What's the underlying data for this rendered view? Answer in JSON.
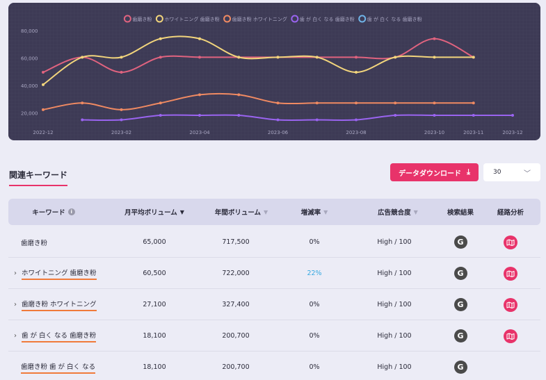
{
  "chart_data": {
    "type": "line",
    "x": [
      "2022-12",
      "2023-01",
      "2023-02",
      "2023-03",
      "2023-04",
      "2023-05",
      "2023-06",
      "2023-07",
      "2023-08",
      "2023-09",
      "2023-10",
      "2023-11",
      "2023-12"
    ],
    "x_ticks": [
      "2022-12",
      "2023-02",
      "2023-04",
      "2023-06",
      "2023-08",
      "2023-10",
      "2023-11",
      "2023-12"
    ],
    "y_ticks": [
      "20,000",
      "40,000",
      "60,000",
      "80,000"
    ],
    "ylim": [
      10000,
      85000
    ],
    "grid": true,
    "legend_position": "top",
    "series": [
      {
        "name": "歯磨き粉",
        "color": "#e0637f",
        "values": [
          49500,
          60500,
          49500,
          60500,
          60500,
          60500,
          60500,
          60500,
          60500,
          60500,
          74000,
          60500,
          null
        ]
      },
      {
        "name": "ホワイトニング 歯磨き粉",
        "color": "#f2d57c",
        "values": [
          40500,
          60500,
          60500,
          74000,
          74000,
          60500,
          60500,
          60500,
          49500,
          60500,
          60500,
          60500,
          null
        ]
      },
      {
        "name": "歯磨き粉 ホワイトニング",
        "color": "#f08a62",
        "values": [
          22200,
          27100,
          22200,
          27100,
          33100,
          33100,
          27100,
          27100,
          27100,
          27100,
          27100,
          27100,
          null
        ]
      },
      {
        "name": "歯 が 白く なる 歯磨き粉",
        "color": "#9a64f0",
        "values": [
          null,
          14800,
          14800,
          18100,
          18100,
          18100,
          14800,
          14800,
          14800,
          18100,
          18100,
          18100,
          18100
        ]
      },
      {
        "name": "歯 が 白く なる 歯磨き粉",
        "color": "#6fb4e8",
        "values": [
          null,
          null,
          null,
          null,
          null,
          null,
          null,
          null,
          null,
          null,
          null,
          null,
          null
        ]
      }
    ]
  },
  "section": {
    "title": "関連キーワード"
  },
  "toolbar": {
    "download_label": "データダウンロード",
    "download_icon": "download-icon",
    "page_size": "30"
  },
  "table": {
    "headers": {
      "keyword": "キーワード",
      "monthly": "月平均ボリューム",
      "yearly": "年間ボリューム",
      "growth": "増減率",
      "competition": "広告競合度",
      "search": "検索結果",
      "path": "経路分析"
    },
    "rows": [
      {
        "keyword": "歯磨き粉",
        "monthly": "65,000",
        "yearly": "717,500",
        "growth": "0%",
        "competition": "High / 100",
        "search_icon": "G",
        "expandable": false,
        "underlined": false,
        "has_path": true
      },
      {
        "keyword": "ホワイトニング 歯磨き粉",
        "monthly": "60,500",
        "yearly": "722,000",
        "growth": "22%",
        "competition": "High / 100",
        "search_icon": "G",
        "expandable": true,
        "underlined": true,
        "has_path": true
      },
      {
        "keyword": "歯磨き粉 ホワイトニング",
        "monthly": "27,100",
        "yearly": "327,400",
        "growth": "0%",
        "competition": "High / 100",
        "search_icon": "G",
        "expandable": true,
        "underlined": true,
        "has_path": true
      },
      {
        "keyword": "歯 が 白く なる 歯磨き粉",
        "monthly": "18,100",
        "yearly": "200,700",
        "growth": "0%",
        "competition": "High / 100",
        "search_icon": "G",
        "expandable": true,
        "underlined": true,
        "has_path": true
      },
      {
        "keyword": "歯磨き粉 歯 が 白く なる",
        "monthly": "18,100",
        "yearly": "200,700",
        "growth": "0%",
        "competition": "High / 100",
        "search_icon": "G",
        "expandable": false,
        "underlined": true,
        "has_path": false
      }
    ]
  }
}
